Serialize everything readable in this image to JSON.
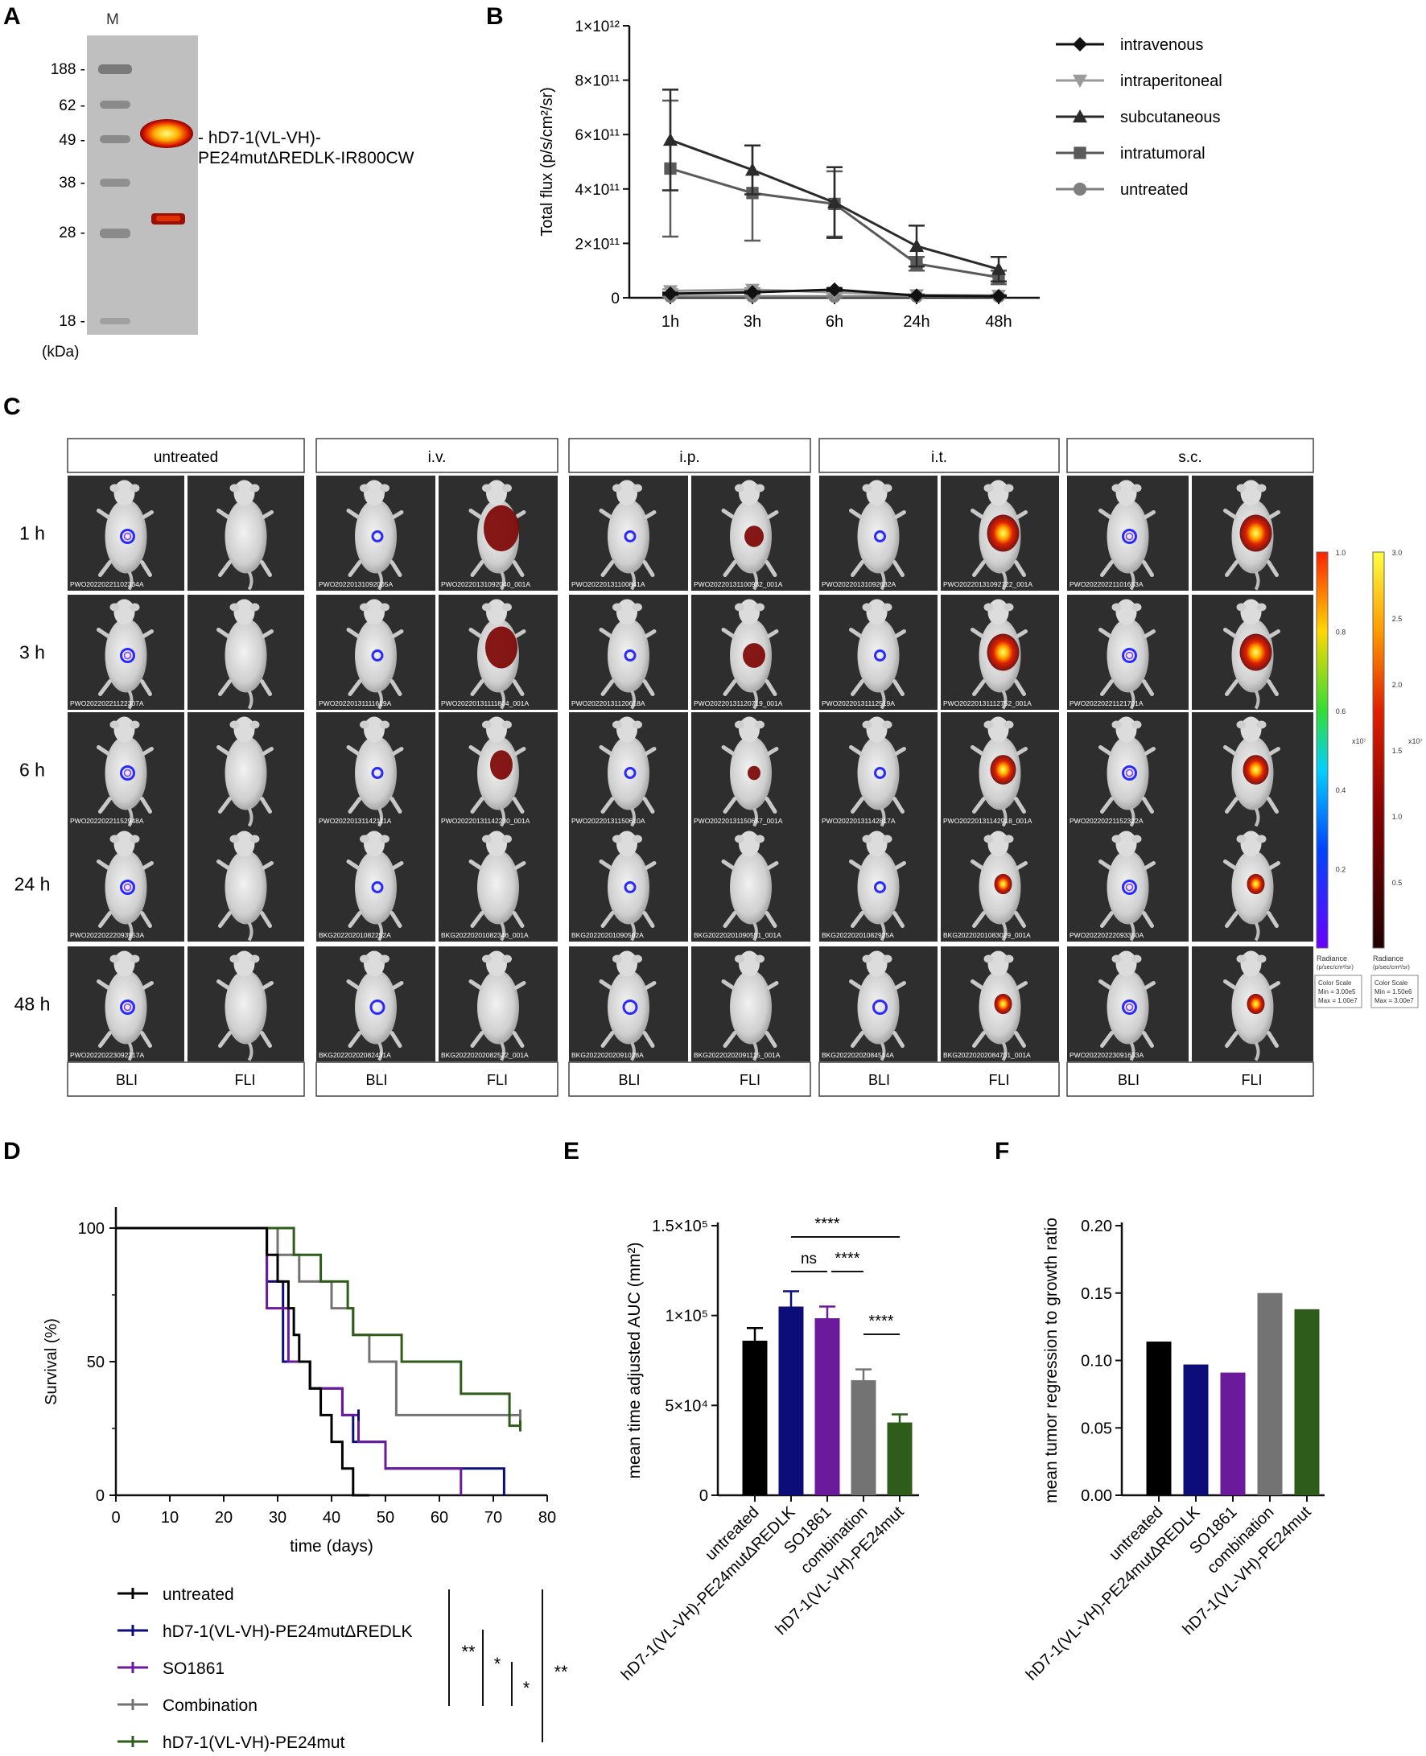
{
  "panel_letters": {
    "a": "A",
    "b": "B",
    "c": "C",
    "d": "D",
    "e": "E",
    "f": "F"
  },
  "panel_a": {
    "lane_label": "M",
    "markers": [
      "188 -",
      "62 -",
      "49 -",
      "38 -",
      "28 -",
      "18 -"
    ],
    "unit": "(kDa)",
    "band_label_line1": "- hD7-1(VL-VH)-",
    "band_label_line2": "PE24mutΔREDLK-IR800CW"
  },
  "panel_c": {
    "groups": [
      "untreated",
      "i.v.",
      "i.p.",
      "i.t.",
      "s.c."
    ],
    "timepoints": [
      "1 h",
      "3 h",
      "6 h",
      "24 h",
      "48 h"
    ],
    "modalities": [
      "BLI",
      "FLI"
    ],
    "image_ids": [
      [
        [
          "PWO20220221102334A",
          ""
        ],
        [
          "PWO20220131092005A",
          "PWO20220131092040_001A"
        ],
        [
          "PWO20220131100841A",
          "PWO20220131100932_001A"
        ],
        [
          "PWO20220131092632A",
          "PWO20220131092722_001A"
        ],
        [
          "PWO20220221101653A",
          ""
        ]
      ],
      [
        [
          "PWO20220221122307A",
          ""
        ],
        [
          "PWO20220131111619A",
          "PWO20220131111804_001A"
        ],
        [
          "PWO20220131120618A",
          "PWO20220131120719_001A"
        ],
        [
          "PWO20220131112519A",
          "PWO20220131112752_001A"
        ],
        [
          "PWO20220221121701A",
          ""
        ]
      ],
      [
        [
          "PWO20220221152948A",
          ""
        ],
        [
          "PWO20220131142111A",
          "PWO20220131142230_001A"
        ],
        [
          "PWO20220131150610A",
          "PWO20220131150657_001A"
        ],
        [
          "PWO20220131142817A",
          "PWO20220131142918_001A"
        ],
        [
          "PWO20220221152322A",
          ""
        ]
      ],
      [
        [
          "PWO20220222093953A",
          ""
        ],
        [
          "BKG20220201082252A",
          "BKG20220201082346_001A"
        ],
        [
          "BKG20220201090502A",
          "BKG20220201090551_001A"
        ],
        [
          "BKG20220201082925A",
          "BKG20220201083029_001A"
        ],
        [
          "PWO20220222093350A",
          ""
        ]
      ],
      [
        [
          "PWO20220223092217A",
          ""
        ],
        [
          "BKG20220202082431A",
          "BKG20220202082522_001A"
        ],
        [
          "BKG20220202091028A",
          "BKG20220202091115_001A"
        ],
        [
          "BKG20220202084514A",
          "BKG20220202084701_001A"
        ],
        [
          "PWO20220223091633A",
          ""
        ]
      ]
    ],
    "scale_bli": {
      "ticks": [
        "1.0",
        "0.8",
        "0.6",
        "0.4",
        "0.2"
      ],
      "exponent": "x10⁷",
      "title_line1": "Radiance",
      "title_line2": "(p/sec/cm²/sr)",
      "box_line1": "Color Scale",
      "box_line2": "Min = 3.00e5",
      "box_line3": "Max = 1.00e7"
    },
    "scale_fli": {
      "ticks": [
        "3.0",
        "2.5",
        "2.0",
        "1.5",
        "1.0",
        "0.5"
      ],
      "exponent": "x10⁷",
      "title_line1": "Radiance",
      "title_line2": "(p/sec/cm²/sr)",
      "box_line1": "Color Scale",
      "box_line2": "Min = 1.50e6",
      "box_line3": "Max = 3.00e7"
    }
  },
  "panel_d_legend": {
    "entries": [
      "untreated",
      "hD7-1(VL-VH)-PE24mutΔREDLK",
      "SO1861",
      "Combination",
      "hD7-1(VL-VH)-PE24mut"
    ],
    "significance": [
      "**",
      "*",
      "*",
      "**"
    ]
  },
  "panel_e_sig": [
    "****",
    "ns",
    "****",
    "****"
  ],
  "colors": {
    "untreated": "#000000",
    "redlk": "#0d0d7a",
    "so1861": "#6a1a9a",
    "combination": "#737373",
    "pe24mut": "#2e5c1a"
  },
  "chart_data": [
    {
      "id": "B",
      "type": "line",
      "title": "",
      "ylabel": "Total flux (p/s/cm²/sr)",
      "xlabel": "",
      "categories": [
        "1h",
        "3h",
        "6h",
        "24h",
        "48h"
      ],
      "ylim": [
        0,
        1000000000000
      ],
      "yticks": [
        0,
        200000000000,
        400000000000,
        600000000000,
        800000000000,
        1000000000000
      ],
      "ytick_labels": [
        "0",
        "2×10¹¹",
        "4×10¹¹",
        "6×10¹¹",
        "8×10¹¹",
        "1×10¹²"
      ],
      "series": [
        {
          "name": "intravenous",
          "marker": "diamond",
          "color": "#111111",
          "values": [
            15000000000,
            20000000000,
            30000000000,
            8000000000,
            6000000000
          ],
          "err": [
            4000000000,
            4000000000,
            5000000000,
            2000000000,
            2000000000
          ]
        },
        {
          "name": "intraperitoneal",
          "marker": "triangle-down",
          "color": "#9a9a9a",
          "values": [
            25000000000,
            30000000000,
            20000000000,
            10000000000,
            8000000000
          ],
          "err": [
            6000000000,
            5000000000,
            4000000000,
            3000000000,
            2000000000
          ]
        },
        {
          "name": "subcutaneous",
          "marker": "triangle-up",
          "color": "#2b2b2b",
          "values": [
            580000000000,
            470000000000,
            350000000000,
            190000000000,
            105000000000
          ],
          "err": [
            185000000000,
            90000000000,
            130000000000,
            75000000000,
            45000000000
          ]
        },
        {
          "name": "intratumoral",
          "marker": "square",
          "color": "#5a5a5a",
          "values": [
            475000000000,
            385000000000,
            345000000000,
            125000000000,
            75000000000
          ],
          "err": [
            250000000000,
            175000000000,
            120000000000,
            25000000000,
            25000000000
          ]
        },
        {
          "name": "untreated",
          "marker": "circle",
          "color": "#7f7f7f",
          "values": [
            5000000000,
            5000000000,
            5000000000,
            5000000000,
            5000000000
          ],
          "err": [
            2000000000,
            2000000000,
            2000000000,
            2000000000,
            2000000000
          ]
        }
      ]
    },
    {
      "id": "D",
      "type": "line",
      "title": "",
      "xlabel": "time (days)",
      "ylabel": "Survival (%)",
      "xlim": [
        0,
        80
      ],
      "ylim": [
        0,
        100
      ],
      "xticks": [
        0,
        10,
        20,
        30,
        40,
        50,
        60,
        70,
        80
      ],
      "yticks": [
        0,
        50,
        100
      ],
      "series": [
        {
          "name": "untreated",
          "color": "#000000",
          "steps": [
            [
              0,
              100
            ],
            [
              28,
              100
            ],
            [
              28,
              90
            ],
            [
              30,
              90
            ],
            [
              30,
              80
            ],
            [
              32,
              80
            ],
            [
              32,
              70
            ],
            [
              33,
              70
            ],
            [
              33,
              60
            ],
            [
              34,
              60
            ],
            [
              34,
              50
            ],
            [
              36,
              50
            ],
            [
              36,
              40
            ],
            [
              38,
              40
            ],
            [
              38,
              30
            ],
            [
              40,
              30
            ],
            [
              40,
              20
            ],
            [
              42,
              20
            ],
            [
              42,
              10
            ],
            [
              44,
              10
            ],
            [
              44,
              0
            ],
            [
              47,
              0
            ]
          ]
        },
        {
          "name": "hD7-1(VL-VH)-PE24mutΔREDLK",
          "color": "#0d0d7a",
          "steps": [
            [
              0,
              100
            ],
            [
              28,
              100
            ],
            [
              28,
              80
            ],
            [
              31,
              80
            ],
            [
              31,
              50
            ],
            [
              36,
              50
            ],
            [
              36,
              40
            ],
            [
              42,
              40
            ],
            [
              42,
              30
            ],
            [
              44,
              30
            ],
            [
              44,
              20
            ],
            [
              50,
              20
            ],
            [
              50,
              10
            ],
            [
              72,
              10
            ],
            [
              72,
              0
            ]
          ]
        },
        {
          "name": "SO1861",
          "color": "#6a1a9a",
          "steps": [
            [
              0,
              100
            ],
            [
              28,
              100
            ],
            [
              28,
              70
            ],
            [
              32,
              70
            ],
            [
              32,
              50
            ],
            [
              36,
              50
            ],
            [
              36,
              40
            ],
            [
              42,
              40
            ],
            [
              42,
              30
            ],
            [
              45,
              30
            ],
            [
              45,
              20
            ],
            [
              50,
              20
            ],
            [
              50,
              10
            ],
            [
              64,
              10
            ],
            [
              64,
              0
            ]
          ]
        },
        {
          "name": "Combination",
          "color": "#737373",
          "steps": [
            [
              0,
              100
            ],
            [
              30,
              100
            ],
            [
              30,
              90
            ],
            [
              34,
              90
            ],
            [
              34,
              80
            ],
            [
              40,
              80
            ],
            [
              40,
              70
            ],
            [
              44,
              70
            ],
            [
              44,
              60
            ],
            [
              47,
              60
            ],
            [
              47,
              50
            ],
            [
              52,
              50
            ],
            [
              52,
              30
            ],
            [
              75,
              30
            ]
          ]
        },
        {
          "name": "hD7-1(VL-VH)-PE24mut",
          "color": "#2e5c1a",
          "steps": [
            [
              0,
              100
            ],
            [
              33,
              100
            ],
            [
              33,
              90
            ],
            [
              38,
              90
            ],
            [
              38,
              80
            ],
            [
              43,
              80
            ],
            [
              43,
              70
            ],
            [
              44,
              70
            ],
            [
              44,
              60
            ],
            [
              53,
              60
            ],
            [
              53,
              50
            ],
            [
              64,
              50
            ],
            [
              64,
              38
            ],
            [
              73,
              38
            ],
            [
              73,
              26
            ],
            [
              75,
              26
            ]
          ]
        }
      ],
      "censor_ticks": [
        {
          "series": 1,
          "x": 45,
          "y": 30
        },
        {
          "series": 3,
          "x": 75,
          "y": 30
        },
        {
          "series": 4,
          "x": 75,
          "y": 26
        }
      ]
    },
    {
      "id": "E",
      "type": "bar",
      "title": "",
      "ylabel": "mean time adjusted AUC (mm²)",
      "categories": [
        "untreated",
        "hD7-1(VL-VH)-PE24mutΔREDLK",
        "SO1861",
        "combination",
        "hD7-1(VL-VH)-PE24mut"
      ],
      "values": [
        86000,
        105000,
        98500,
        64000,
        40500
      ],
      "err": [
        7000,
        8500,
        6500,
        6000,
        4500
      ],
      "ylim": [
        0,
        150000
      ],
      "yticks": [
        0,
        50000,
        100000,
        150000
      ],
      "ytick_labels": [
        "0",
        "5×10⁴",
        "1×10⁵",
        "1.5×10⁵"
      ]
    },
    {
      "id": "F",
      "type": "bar",
      "title": "",
      "ylabel": "mean tumor regression to growth ratio",
      "categories": [
        "untreated",
        "hD7-1(VL-VH)-PE24mutΔREDLK",
        "SO1861",
        "combination",
        "hD7-1(VL-VH)-PE24mut"
      ],
      "values": [
        0.114,
        0.097,
        0.091,
        0.15,
        0.138
      ],
      "ylim": [
        0,
        0.2
      ],
      "yticks": [
        0,
        0.05,
        0.1,
        0.15,
        0.2
      ],
      "ytick_labels": [
        "0.00",
        "0.05",
        "0.10",
        "0.15",
        "0.20"
      ]
    }
  ]
}
